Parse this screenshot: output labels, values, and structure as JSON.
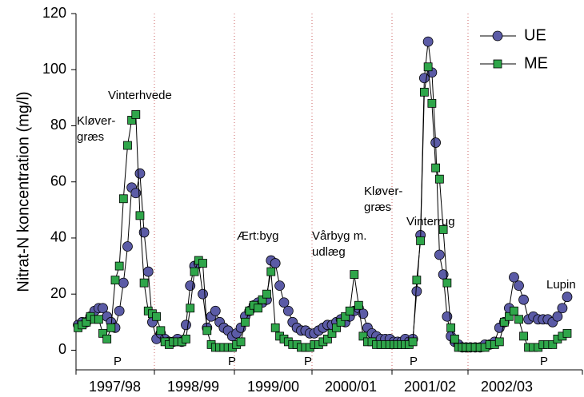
{
  "chart_data": {
    "type": "line",
    "y_label": "Nitrat-N koncentration (mg/l)",
    "categories": [
      "1997/98",
      "1998/99",
      "1999/00",
      "2000/01",
      "2001/02",
      "2002/03"
    ],
    "ylim": [
      -7,
      120
    ],
    "yticks": [
      0,
      20,
      40,
      60,
      80,
      100,
      120
    ],
    "legend": "upper right",
    "series": [
      {
        "name": "UE",
        "color": "#5b5ba6",
        "marker": "circle",
        "values": [
          [
            9,
            10,
            10,
            12,
            14,
            15,
            15,
            12,
            10,
            8,
            14,
            24,
            37,
            58,
            56,
            63,
            42,
            28,
            10
          ],
          [
            4,
            6,
            4,
            3,
            3,
            4,
            3,
            9,
            23,
            30,
            31,
            20,
            8,
            12,
            14,
            10,
            8,
            7,
            5
          ],
          [
            6,
            8,
            12,
            14,
            16,
            17,
            17,
            18,
            32,
            31,
            23,
            17,
            14,
            10,
            8,
            7,
            7,
            6
          ],
          [
            6,
            7,
            8,
            9,
            9,
            10,
            11,
            10,
            12,
            14,
            15,
            13,
            8,
            6,
            5,
            4,
            4,
            4
          ],
          [
            3,
            3,
            3,
            4,
            3,
            4,
            21,
            41,
            97,
            110,
            99,
            74,
            34,
            27,
            12,
            5,
            3,
            2,
            1,
            1
          ],
          [
            1,
            1,
            1,
            2,
            2,
            3,
            8,
            10,
            15,
            26,
            23,
            18,
            11,
            12,
            11,
            11,
            11,
            10,
            12,
            15,
            19
          ]
        ]
      },
      {
        "name": "ME",
        "color": "#2fa64a",
        "marker": "square",
        "values": [
          [
            8,
            9,
            10,
            12,
            11,
            11,
            6,
            4,
            8,
            25,
            30,
            54,
            73,
            82,
            84,
            48,
            24,
            14,
            13
          ],
          [
            12,
            7,
            3,
            2,
            3,
            3,
            3,
            4,
            15,
            28,
            32,
            31,
            7,
            2,
            1,
            1,
            1,
            1,
            1
          ],
          [
            2,
            3,
            10,
            14,
            16,
            15,
            18,
            20,
            28,
            8,
            5,
            4,
            3,
            2,
            2,
            1,
            1,
            1
          ],
          [
            2,
            2,
            3,
            4,
            6,
            8,
            10,
            12,
            14,
            27,
            16,
            5,
            3,
            3,
            2,
            2,
            2,
            2
          ],
          [
            2,
            2,
            2,
            2,
            2,
            3,
            25,
            39,
            92,
            101,
            88,
            65,
            61,
            43,
            24,
            8,
            4,
            1,
            1,
            1
          ],
          [
            1,
            1,
            1,
            1,
            2,
            2,
            3,
            10,
            12,
            14,
            11,
            5,
            1,
            1,
            1,
            2,
            2,
            2,
            4,
            5,
            6
          ]
        ]
      }
    ],
    "annotations": [
      [
        "Kløver-",
        "græs"
      ],
      [
        "Vinterhvede"
      ],
      [
        "Ært:byg"
      ],
      [
        "Vårbyg m.",
        "udlæg"
      ],
      [
        "Kløver-",
        "græs"
      ],
      [
        "Vinterrug"
      ],
      [
        "Lupin"
      ]
    ],
    "p_labels": [
      "P",
      "P",
      "P",
      "P",
      "P"
    ]
  }
}
